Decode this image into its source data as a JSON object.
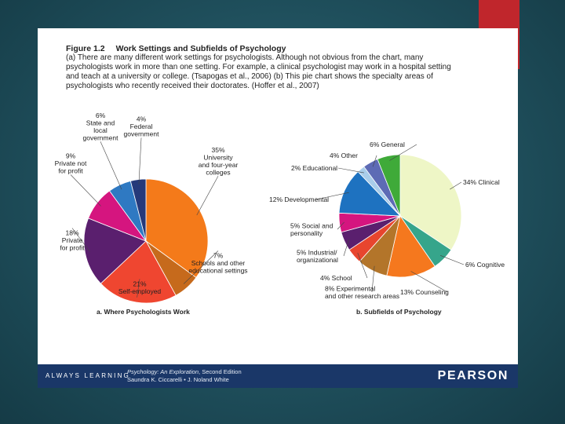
{
  "figure": {
    "number": "Figure 1.2",
    "title": "Work Settings and Subfields of Psychology",
    "caption_lines": [
      "(a) There are many different work settings for psychologists. Although not obvious from the chart, many",
      "psychologists work in more than one setting. For example, a clinical psychologist may work in a hospital setting",
      "and teach at a university or college. (Tsapogas et al., 2006) (b) This pie chart shows the specialty areas of",
      "psychologists who recently received their doctorates. (Hoffer et al., 2007)"
    ]
  },
  "chart_data": [
    {
      "type": "pie",
      "title": "a. Where Psychologists Work",
      "slices": [
        {
          "label": "University and four-year colleges",
          "value": 35,
          "value_text": "35%",
          "color": "#f47a1a",
          "label_lines": [
            "35%",
            "University",
            "and four-year",
            "colleges"
          ]
        },
        {
          "label": "Schools and other educational settings",
          "value": 7,
          "value_text": "7%",
          "color": "#c66a1c",
          "label_lines": [
            "7%",
            "Schools and other",
            "educational settings"
          ]
        },
        {
          "label": "Self-employed",
          "value": 21,
          "value_text": "21%",
          "color": "#ef4630",
          "label_lines": [
            "21%",
            "Self-employed"
          ]
        },
        {
          "label": "Private for profit",
          "value": 18,
          "value_text": "18%",
          "color": "#5a1f6e",
          "label_lines": [
            "18%",
            "Private",
            "for profit"
          ]
        },
        {
          "label": "Private not for profit",
          "value": 9,
          "value_text": "9%",
          "color": "#d5157f",
          "label_lines": [
            "9%",
            "Private not",
            "for profit"
          ]
        },
        {
          "label": "State and local government",
          "value": 6,
          "value_text": "6%",
          "color": "#2f79c2",
          "label_lines": [
            "6%",
            "State and",
            "local",
            "government"
          ]
        },
        {
          "label": "Federal government",
          "value": 4,
          "value_text": "4%",
          "color": "#25397a",
          "label_lines": [
            "4%",
            "Federal",
            "government"
          ]
        }
      ]
    },
    {
      "type": "pie",
      "title": "b. Subfields of Psychology",
      "slices": [
        {
          "label": "Clinical",
          "value": 34,
          "value_text": "34%",
          "color": "#eef6c6",
          "label_lines": [
            "34% Clinical"
          ]
        },
        {
          "label": "Cognitive",
          "value": 6,
          "value_text": "6%",
          "color": "#36a58b",
          "label_lines": [
            "6% Cognitive"
          ]
        },
        {
          "label": "Counseling",
          "value": 13,
          "value_text": "13%",
          "color": "#f5781e",
          "label_lines": [
            "13% Counseling"
          ]
        },
        {
          "label": "Experimental and other research areas",
          "value": 8,
          "value_text": "8%",
          "color": "#b3752a",
          "label_lines": [
            "8% Experimental",
            "and other research areas"
          ]
        },
        {
          "label": "School",
          "value": 4,
          "value_text": "4%",
          "color": "#e8452e",
          "label_lines": [
            "4% School"
          ]
        },
        {
          "label": "Industrial/organizational",
          "value": 5,
          "value_text": "5%",
          "color": "#5a1f6e",
          "label_lines": [
            "5% Industrial/",
            "organizational"
          ]
        },
        {
          "label": "Social and personality",
          "value": 5,
          "value_text": "5%",
          "color": "#d5157f",
          "label_lines": [
            "5% Social and",
            "personality"
          ]
        },
        {
          "label": "Developmental",
          "value": 12,
          "value_text": "12%",
          "color": "#1e72c0",
          "label_lines": [
            "12% Developmental"
          ]
        },
        {
          "label": "Educational",
          "value": 2,
          "value_text": "2%",
          "color": "#a9cdea",
          "label_lines": [
            "2% Educational"
          ]
        },
        {
          "label": "Other",
          "value": 4,
          "value_text": "4%",
          "color": "#5d6bb5",
          "label_lines": [
            "4% Other"
          ]
        },
        {
          "label": "General",
          "value": 6,
          "value_text": "6%",
          "color": "#3faa39",
          "label_lines": [
            "6% General"
          ]
        }
      ]
    }
  ],
  "footer": {
    "tagline": "ALWAYS LEARNING",
    "book_title": "Psychology: An Exploration",
    "book_edition": ", Second Edition",
    "book_authors": "Saundra K. Ciccarelli • J. Noland White",
    "publisher": "PEARSON"
  },
  "colors": {
    "accent": "#c0262c",
    "footer": "#1a3768",
    "background": "#1f4f5c"
  }
}
